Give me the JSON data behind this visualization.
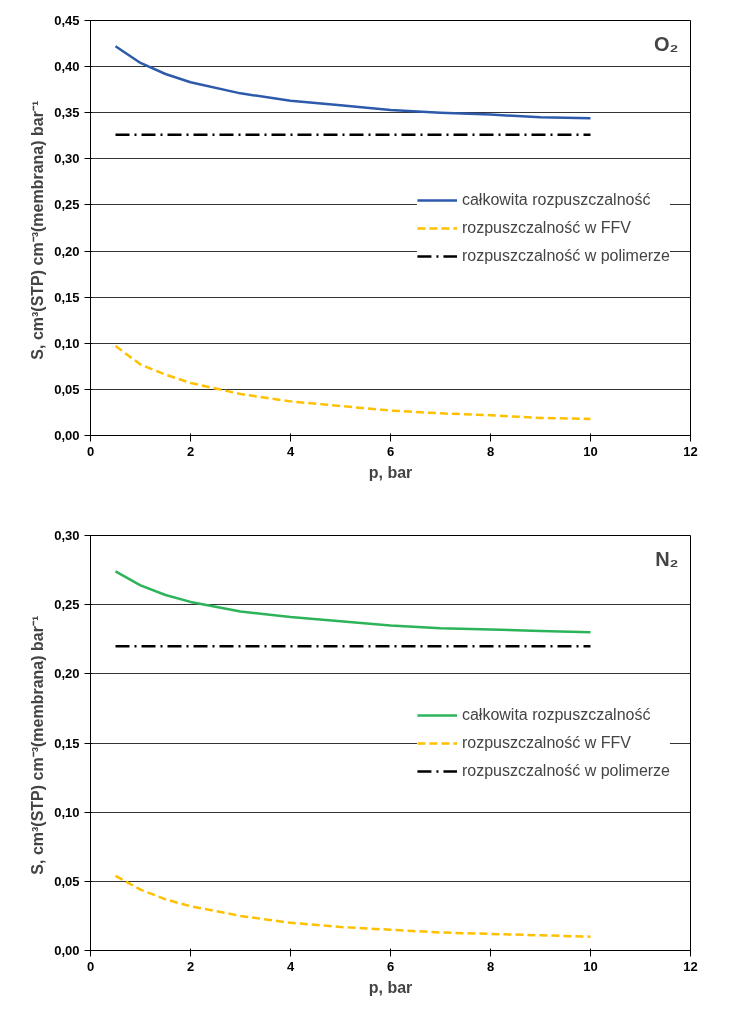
{
  "chart_data": [
    {
      "type": "line",
      "xlabel": "p, bar",
      "ylabel": "S, cm³(STP) cm⁻³(membrana)  bar⁻¹",
      "annotations": [
        "O₂"
      ],
      "x": [
        0.5,
        1,
        1.5,
        2,
        3,
        4,
        5,
        6,
        7,
        8,
        9,
        10
      ],
      "series": [
        {
          "name": "całkowita rozpuszczalność",
          "color": "#2e5aac",
          "line_style": "solid",
          "values": [
            0.422,
            0.404,
            0.392,
            0.383,
            0.371,
            0.363,
            0.358,
            0.353,
            0.35,
            0.348,
            0.345,
            0.344
          ]
        },
        {
          "name": "rozpuszczalność w FFV",
          "color": "#ffc000",
          "line_style": "dashed",
          "values": [
            0.097,
            0.077,
            0.066,
            0.057,
            0.045,
            0.037,
            0.032,
            0.027,
            0.024,
            0.022,
            0.019,
            0.018
          ]
        },
        {
          "name": "rozpuszczalność w polimerze",
          "color": "#000000",
          "line_style": "dashdot",
          "values": [
            0.326,
            0.326,
            0.326,
            0.326,
            0.326,
            0.326,
            0.326,
            0.326,
            0.326,
            0.326,
            0.326,
            0.326
          ]
        }
      ],
      "xlim": [
        0,
        12
      ],
      "xticks": [
        0,
        2,
        4,
        6,
        8,
        10,
        12
      ],
      "ylim": [
        0,
        0.45
      ],
      "yticks": [
        {
          "value": 0,
          "label": "0,00"
        },
        {
          "value": 0.05,
          "label": "0,05"
        },
        {
          "value": 0.1,
          "label": "0,10"
        },
        {
          "value": 0.15,
          "label": "0,15"
        },
        {
          "value": 0.2,
          "label": "0,20"
        },
        {
          "value": 0.25,
          "label": "0,25"
        },
        {
          "value": 0.3,
          "label": "0,30"
        },
        {
          "value": 0.35,
          "label": "0,35"
        },
        {
          "value": 0.4,
          "label": "0,40"
        },
        {
          "value": 0.45,
          "label": "0,45"
        }
      ],
      "grid": "y",
      "legend": "right",
      "marker": "none"
    },
    {
      "type": "line",
      "xlabel": "p, bar",
      "ylabel": "S, cm³(STP) cm⁻³(membrana)  bar⁻¹",
      "annotations": [
        "N₂"
      ],
      "x": [
        0.5,
        1,
        1.5,
        2,
        3,
        4,
        5,
        6,
        7,
        8,
        9,
        10
      ],
      "series": [
        {
          "name": "całkowita rozpuszczalność",
          "color": "#2db35a",
          "line_style": "solid",
          "values": [
            0.274,
            0.264,
            0.257,
            0.252,
            0.245,
            0.241,
            0.238,
            0.235,
            0.233,
            0.232,
            0.231,
            0.23
          ]
        },
        {
          "name": "rozpuszczalność w FFV",
          "color": "#ffc000",
          "line_style": "dashed",
          "values": [
            0.054,
            0.044,
            0.037,
            0.032,
            0.025,
            0.02,
            0.017,
            0.015,
            0.013,
            0.012,
            0.011,
            0.01
          ]
        },
        {
          "name": "rozpuszczalność w polimerze",
          "color": "#000000",
          "line_style": "dashdot",
          "values": [
            0.22,
            0.22,
            0.22,
            0.22,
            0.22,
            0.22,
            0.22,
            0.22,
            0.22,
            0.22,
            0.22,
            0.22
          ]
        }
      ],
      "xlim": [
        0,
        12
      ],
      "xticks": [
        0,
        2,
        4,
        6,
        8,
        10,
        12
      ],
      "ylim": [
        0,
        0.3
      ],
      "yticks": [
        {
          "value": 0,
          "label": "0,00"
        },
        {
          "value": 0.05,
          "label": "0,05"
        },
        {
          "value": 0.1,
          "label": "0,10"
        },
        {
          "value": 0.15,
          "label": "0,15"
        },
        {
          "value": 0.2,
          "label": "0,20"
        },
        {
          "value": 0.25,
          "label": "0,25"
        },
        {
          "value": 0.3,
          "label": "0,30"
        }
      ],
      "grid": "y",
      "legend": "right",
      "marker": "none"
    }
  ]
}
